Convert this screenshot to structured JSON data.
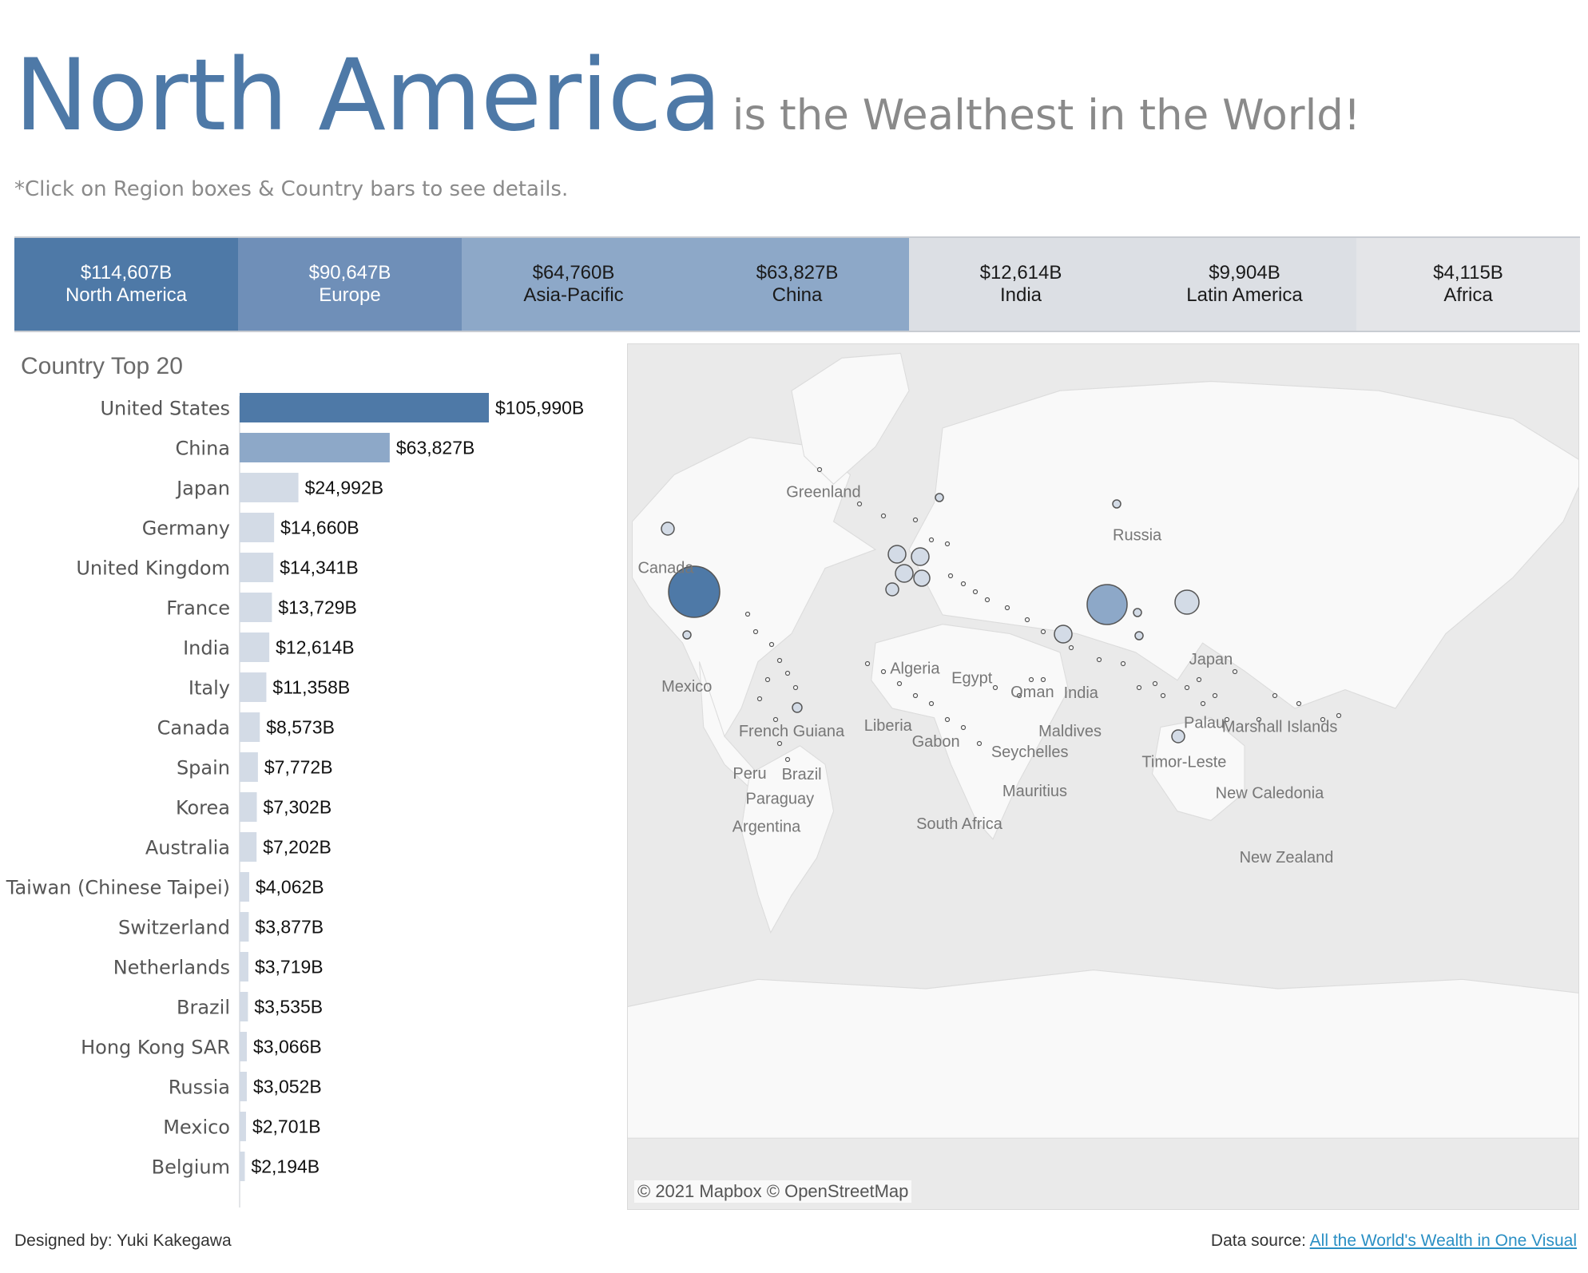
{
  "header": {
    "title_main": "North America",
    "title_sub": "is the Wealthest in the World!",
    "hint": "*Click on Region boxes & Country bars to see details."
  },
  "regions": [
    {
      "value": "$114,607B",
      "name": "North America",
      "color": "#4e79a7",
      "text_color": "#ffffff"
    },
    {
      "value": "$90,647B",
      "name": "Europe",
      "color": "#6f8fb8",
      "text_color": "#ffffff"
    },
    {
      "value": "$64,760B",
      "name": "Asia-Pacific",
      "color": "#8da8c8",
      "text_color": "#1a1a1a"
    },
    {
      "value": "$63,827B",
      "name": "China",
      "color": "#8da8c8",
      "text_color": "#1a1a1a"
    },
    {
      "value": "$12,614B",
      "name": "India",
      "color": "#dcdfe4",
      "text_color": "#1a1a1a"
    },
    {
      "value": "$9,904B",
      "name": "Latin America",
      "color": "#dcdfe4",
      "text_color": "#1a1a1a"
    },
    {
      "value": "$4,115B",
      "name": "Africa",
      "color": "#e4e5e8",
      "text_color": "#1a1a1a"
    }
  ],
  "bar_panel": {
    "title": "Country Top 20"
  },
  "chart_data": [
    {
      "type": "bar",
      "orientation": "horizontal",
      "title": "Country Top 20",
      "unit": "$B",
      "categories": [
        "United States",
        "China",
        "Japan",
        "Germany",
        "United Kingdom",
        "France",
        "India",
        "Italy",
        "Canada",
        "Spain",
        "Korea",
        "Australia",
        "Taiwan (Chinese Taipei)",
        "Switzerland",
        "Netherlands",
        "Brazil",
        "Hong Kong SAR",
        "Russia",
        "Mexico",
        "Belgium"
      ],
      "values": [
        105990,
        63827,
        24992,
        14660,
        14341,
        13729,
        12614,
        11358,
        8573,
        7772,
        7302,
        7202,
        4062,
        3877,
        3719,
        3535,
        3066,
        3052,
        2701,
        2194
      ],
      "labels": [
        "$105,990B",
        "$63,827B",
        "$24,992B",
        "$14,660B",
        "$14,341B",
        "$13,729B",
        "$12,614B",
        "$11,358B",
        "$8,573B",
        "$7,772B",
        "$7,302B",
        "$7,202B",
        "$4,062B",
        "$3,877B",
        "$3,719B",
        "$3,535B",
        "$3,066B",
        "$3,052B",
        "$2,701B",
        "$2,194B"
      ],
      "colors": {
        "top": "#4e79a7",
        "second": "#8da8c8",
        "rest": "#d3dbe6"
      },
      "xlim": [
        0,
        110000
      ]
    },
    {
      "type": "scatter",
      "subtype": "symbol-map",
      "labeled_countries": [
        "Greenland",
        "Canada",
        "Mexico",
        "French Guiana",
        "Peru",
        "Brazil",
        "Paraguay",
        "Argentina",
        "Russia",
        "Algeria",
        "Egypt",
        "Liberia",
        "Gabon",
        "Oman",
        "India",
        "Japan",
        "Maldives",
        "Seychelles",
        "Mauritius",
        "South Africa",
        "Palau",
        "Marshall Islands",
        "Timor-Leste",
        "New Caledonia",
        "New Zealand"
      ],
      "colors": {
        "large": "#4e79a7",
        "medium": "#8da8c8",
        "small": "#d3dbe6"
      }
    }
  ],
  "map": {
    "credit": "© 2021 Mapbox  © OpenStreetMap"
  },
  "footer": {
    "designer": "Designed by: Yuki Kakegawa",
    "source_prefix": "Data source: ",
    "source_link": "All the World's Wealth in One Visual"
  }
}
